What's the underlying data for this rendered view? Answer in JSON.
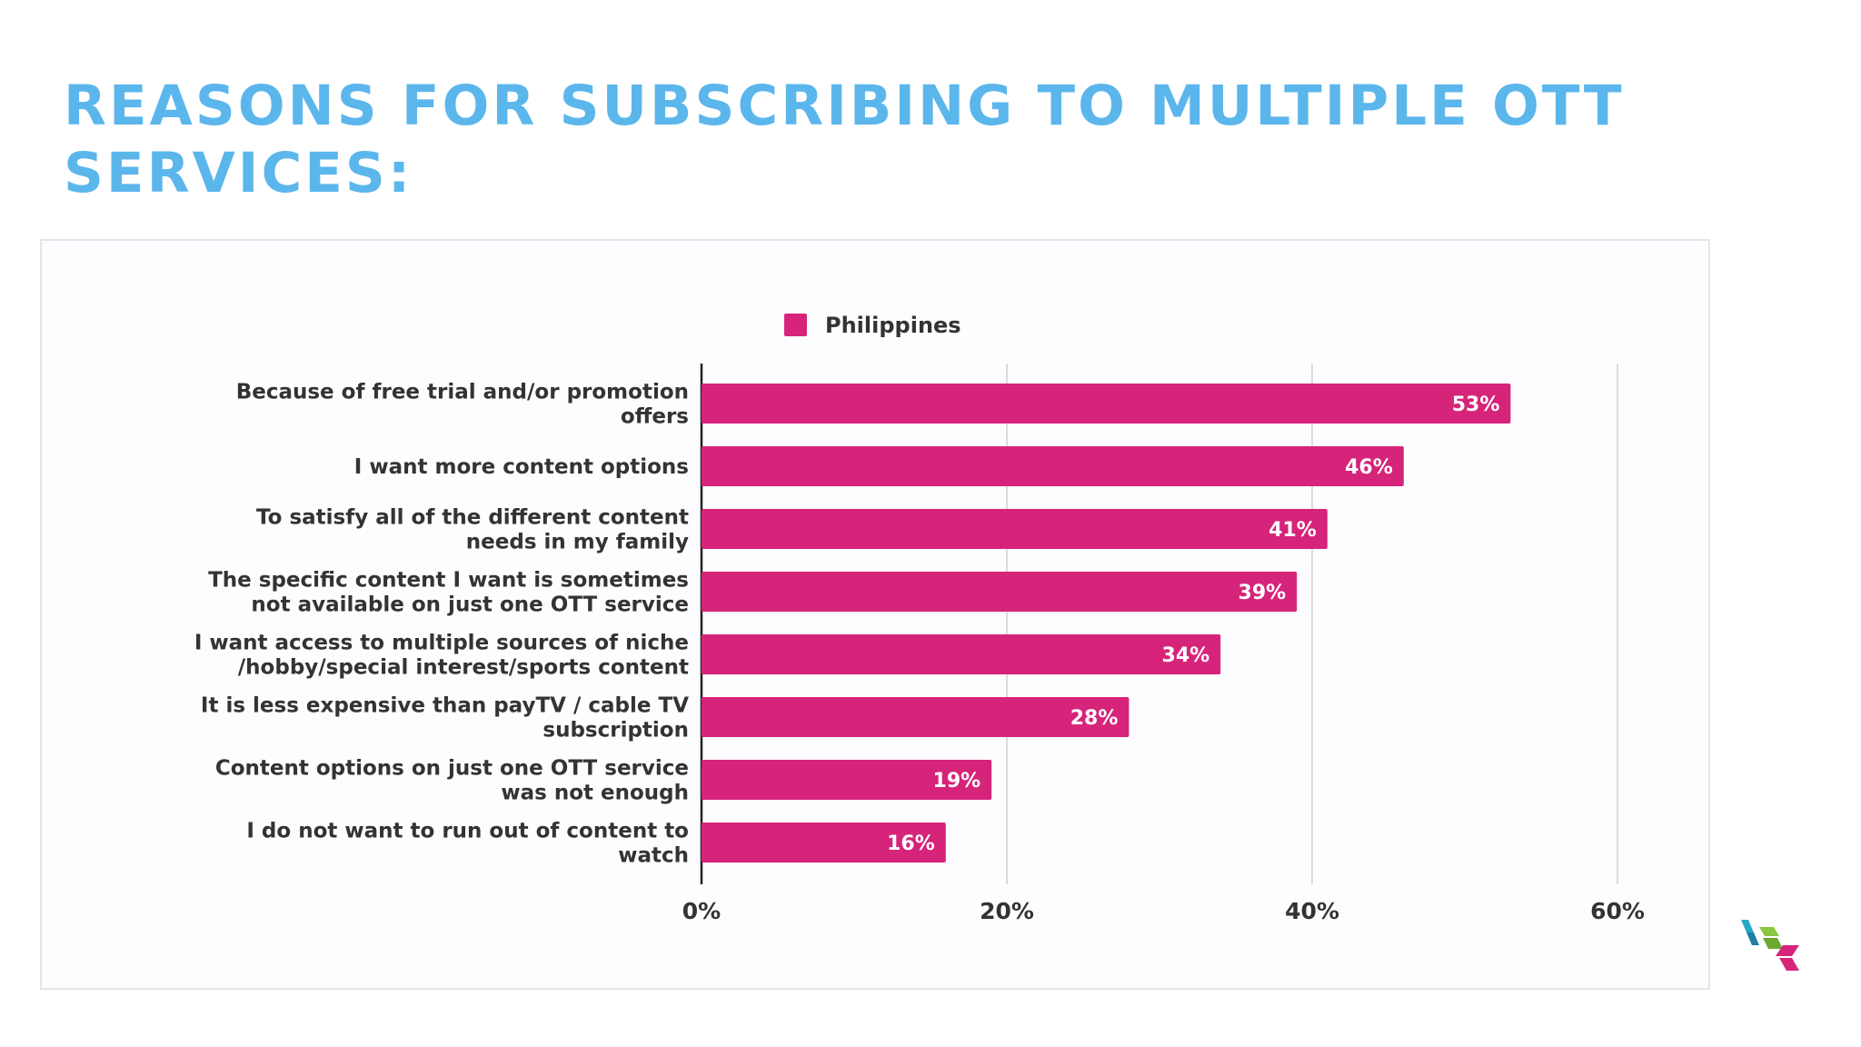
{
  "slide": {
    "title_line1": "REASONS FOR SUBSCRIBING TO MULTIPLE OTT",
    "title_line2": "SERVICES:"
  },
  "colors": {
    "title": "#5bb6ec",
    "bar": "#d6247a",
    "axis_text": "#333333",
    "grid": "#d0d0d0"
  },
  "chart_data": {
    "type": "bar",
    "orientation": "horizontal",
    "legend_position": "top",
    "grid": true,
    "xlim": [
      0,
      60
    ],
    "x_ticks": [
      "0%",
      "20%",
      "40%",
      "60%"
    ],
    "x_tick_values": [
      0,
      20,
      40,
      60
    ],
    "categories": [
      [
        "Because of free trial and/or promotion",
        "offers"
      ],
      [
        "I want more content options"
      ],
      [
        "To satisfy all of the different content",
        "needs in my family"
      ],
      [
        "The specific content I want is sometimes",
        "not available on just one OTT service"
      ],
      [
        "I want access to multiple sources of niche",
        "/hobby/special interest/sports content"
      ],
      [
        "It is less expensive than payTV / cable TV",
        "subscription"
      ],
      [
        "Content options on just one OTT service",
        "was not enough"
      ],
      [
        "I do not want to run out of content to",
        "watch"
      ]
    ],
    "series": [
      {
        "name": "Philippines",
        "values": [
          53,
          46,
          41,
          39,
          34,
          28,
          19,
          16
        ],
        "labels": [
          "53%",
          "46%",
          "41%",
          "39%",
          "34%",
          "28%",
          "19%",
          "16%"
        ]
      }
    ]
  },
  "logo": {
    "icon": "cube-logo-icon"
  }
}
